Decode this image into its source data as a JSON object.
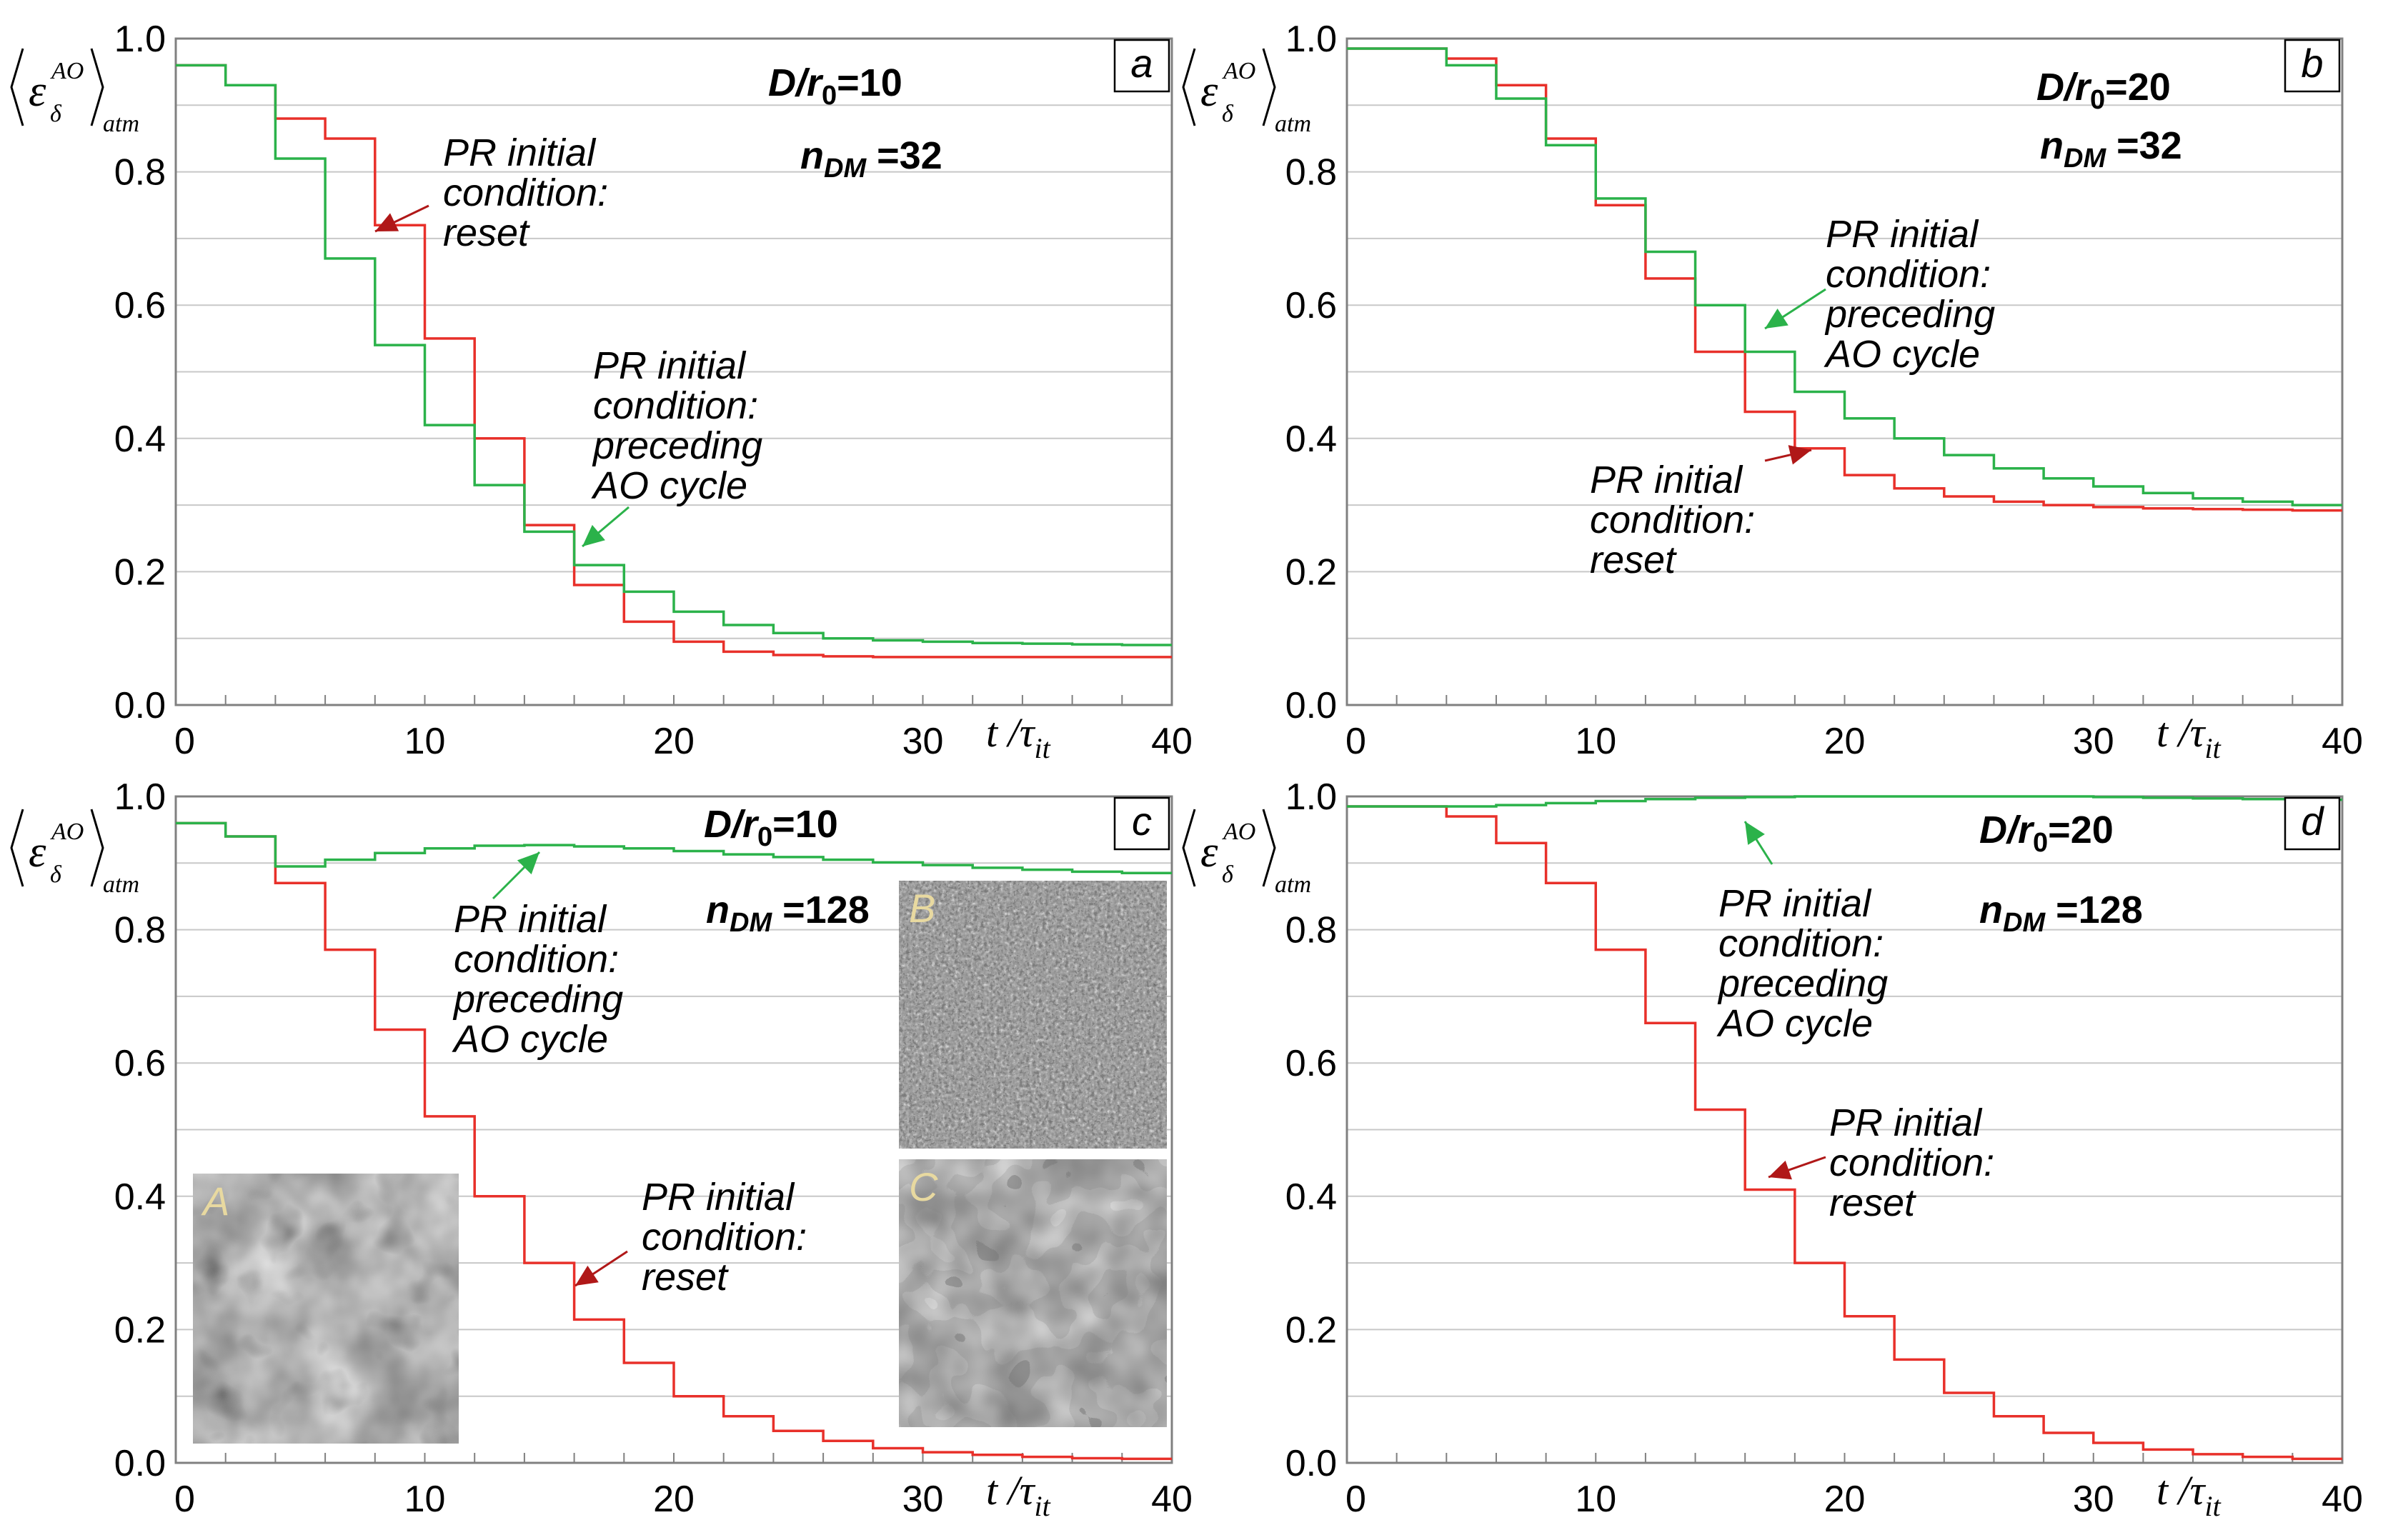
{
  "chart_data": [
    {
      "panel": "a",
      "type": "line",
      "step": true,
      "params": {
        "d_r0": "D/r",
        "d_r0_sub": "0",
        "d_r0_val": "=10",
        "ndm": "n",
        "ndm_sub": "DM",
        "ndm_val": " =32"
      },
      "xlim": [
        0,
        40
      ],
      "ylim": [
        0,
        1
      ],
      "xticks": [
        "0",
        "10",
        "20",
        "30",
        "40"
      ],
      "yticks": [
        "0.0",
        "0.2",
        "0.4",
        "0.6",
        "0.8",
        "1.0"
      ],
      "x": [
        0,
        2,
        4,
        6,
        8,
        10,
        12,
        14,
        16,
        18,
        20,
        22,
        24,
        26,
        28,
        30,
        32,
        34,
        36,
        38,
        40
      ],
      "series": [
        {
          "color": "#e8302a",
          "values": [
            0.96,
            0.93,
            0.88,
            0.85,
            0.72,
            0.55,
            0.4,
            0.27,
            0.18,
            0.125,
            0.095,
            0.08,
            0.075,
            0.073,
            0.072,
            0.072,
            0.072,
            0.072,
            0.072,
            0.072,
            0.072
          ]
        },
        {
          "color": "#2bb24a",
          "values": [
            0.96,
            0.93,
            0.82,
            0.67,
            0.54,
            0.42,
            0.33,
            0.26,
            0.21,
            0.17,
            0.14,
            0.12,
            0.108,
            0.1,
            0.097,
            0.095,
            0.093,
            0.092,
            0.091,
            0.09,
            0.09
          ]
        }
      ],
      "annotations": [
        {
          "lines": [
            "PR initial",
            "condition:",
            "reset"
          ],
          "color": "#b01818"
        },
        {
          "lines": [
            "PR initial",
            "condition:",
            "preceding",
            "AO cycle"
          ],
          "color": "#2bb24a"
        }
      ]
    },
    {
      "panel": "b",
      "type": "line",
      "step": true,
      "params": {
        "d_r0": "D/r",
        "d_r0_sub": "0",
        "d_r0_val": "=20",
        "ndm": "n",
        "ndm_sub": "DM",
        "ndm_val": " =32"
      },
      "xlim": [
        0,
        40
      ],
      "ylim": [
        0,
        1
      ],
      "xticks": [
        "0",
        "10",
        "20",
        "30",
        "40"
      ],
      "yticks": [
        "0.0",
        "0.2",
        "0.4",
        "0.6",
        "0.8",
        "1.0"
      ],
      "x": [
        0,
        2,
        4,
        6,
        8,
        10,
        12,
        14,
        16,
        18,
        20,
        22,
        24,
        26,
        28,
        30,
        32,
        34,
        36,
        38,
        40
      ],
      "series": [
        {
          "color": "#e8302a",
          "values": [
            0.985,
            0.985,
            0.97,
            0.93,
            0.85,
            0.75,
            0.64,
            0.53,
            0.44,
            0.385,
            0.345,
            0.325,
            0.313,
            0.305,
            0.3,
            0.297,
            0.295,
            0.294,
            0.293,
            0.292,
            0.292
          ]
        },
        {
          "color": "#2bb24a",
          "values": [
            0.985,
            0.985,
            0.96,
            0.91,
            0.84,
            0.76,
            0.68,
            0.6,
            0.53,
            0.47,
            0.43,
            0.4,
            0.375,
            0.355,
            0.34,
            0.328,
            0.318,
            0.31,
            0.305,
            0.3,
            0.3
          ]
        }
      ],
      "annotations": [
        {
          "lines": [
            "PR initial",
            "condition:",
            "preceding",
            "AO cycle"
          ],
          "color": "#2bb24a"
        },
        {
          "lines": [
            "PR initial",
            "condition:",
            "reset"
          ],
          "color": "#b01818"
        }
      ]
    },
    {
      "panel": "c",
      "type": "line",
      "step": true,
      "params": {
        "d_r0": "D/r",
        "d_r0_sub": "0",
        "d_r0_val": "=10",
        "ndm": "n",
        "ndm_sub": "DM",
        "ndm_val": " =128"
      },
      "xlim": [
        0,
        40
      ],
      "ylim": [
        0,
        1
      ],
      "xticks": [
        "0",
        "10",
        "20",
        "30",
        "40"
      ],
      "yticks": [
        "0.0",
        "0.2",
        "0.4",
        "0.6",
        "0.8",
        "1.0"
      ],
      "x": [
        0,
        2,
        4,
        6,
        8,
        10,
        12,
        14,
        16,
        18,
        20,
        22,
        24,
        26,
        28,
        30,
        32,
        34,
        36,
        38,
        40
      ],
      "series": [
        {
          "color": "#e8302a",
          "values": [
            0.96,
            0.94,
            0.87,
            0.77,
            0.65,
            0.52,
            0.4,
            0.3,
            0.215,
            0.15,
            0.1,
            0.07,
            0.048,
            0.033,
            0.022,
            0.016,
            0.012,
            0.009,
            0.007,
            0.006,
            0.006
          ]
        },
        {
          "color": "#2bb24a",
          "values": [
            0.96,
            0.94,
            0.895,
            0.905,
            0.915,
            0.922,
            0.926,
            0.927,
            0.925,
            0.922,
            0.918,
            0.913,
            0.909,
            0.905,
            0.901,
            0.897,
            0.893,
            0.89,
            0.887,
            0.885,
            0.883
          ]
        }
      ],
      "annotations": [
        {
          "lines": [
            "PR initial",
            "condition:",
            "preceding",
            "AO cycle"
          ],
          "color": "#2bb24a"
        },
        {
          "lines": [
            "PR initial",
            "condition:",
            "reset"
          ],
          "color": "#b01818"
        }
      ],
      "insets": [
        "A",
        "B",
        "C"
      ]
    },
    {
      "panel": "d",
      "type": "line",
      "step": true,
      "params": {
        "d_r0": "D/r",
        "d_r0_sub": "0",
        "d_r0_val": "=20",
        "ndm": "n",
        "ndm_sub": "DM",
        "ndm_val": " =128"
      },
      "xlim": [
        0,
        40
      ],
      "ylim": [
        0,
        1
      ],
      "xticks": [
        "0",
        "10",
        "20",
        "30",
        "40"
      ],
      "yticks": [
        "0.0",
        "0.2",
        "0.4",
        "0.6",
        "0.8",
        "1.0"
      ],
      "x": [
        0,
        2,
        4,
        6,
        8,
        10,
        12,
        14,
        16,
        18,
        20,
        22,
        24,
        26,
        28,
        30,
        32,
        34,
        36,
        38,
        40
      ],
      "series": [
        {
          "color": "#e8302a",
          "values": [
            0.985,
            0.985,
            0.97,
            0.93,
            0.87,
            0.77,
            0.66,
            0.53,
            0.41,
            0.3,
            0.22,
            0.155,
            0.105,
            0.07,
            0.045,
            0.03,
            0.02,
            0.013,
            0.009,
            0.006,
            0.006
          ]
        },
        {
          "color": "#2bb24a",
          "values": [
            0.985,
            0.985,
            0.985,
            0.987,
            0.99,
            0.993,
            0.996,
            0.998,
            0.999,
            1.0,
            1.0,
            1.0,
            1.0,
            1.0,
            1.0,
            0.999,
            0.998,
            0.997,
            0.996,
            0.995,
            0.995
          ]
        }
      ],
      "annotations": [
        {
          "lines": [
            "PR initial",
            "condition:",
            "preceding",
            "AO cycle"
          ],
          "color": "#2bb24a"
        },
        {
          "lines": [
            "PR initial",
            "condition:",
            "reset"
          ],
          "color": "#b01818"
        }
      ]
    }
  ],
  "axis": {
    "ylabel_main": "ε",
    "ylabel_sub": "δ",
    "ylabel_sup": "AO",
    "ylabel_tail": "atm",
    "xlabel_t": "t /",
    "xlabel_tau": "τ",
    "xlabel_sub": "it"
  }
}
